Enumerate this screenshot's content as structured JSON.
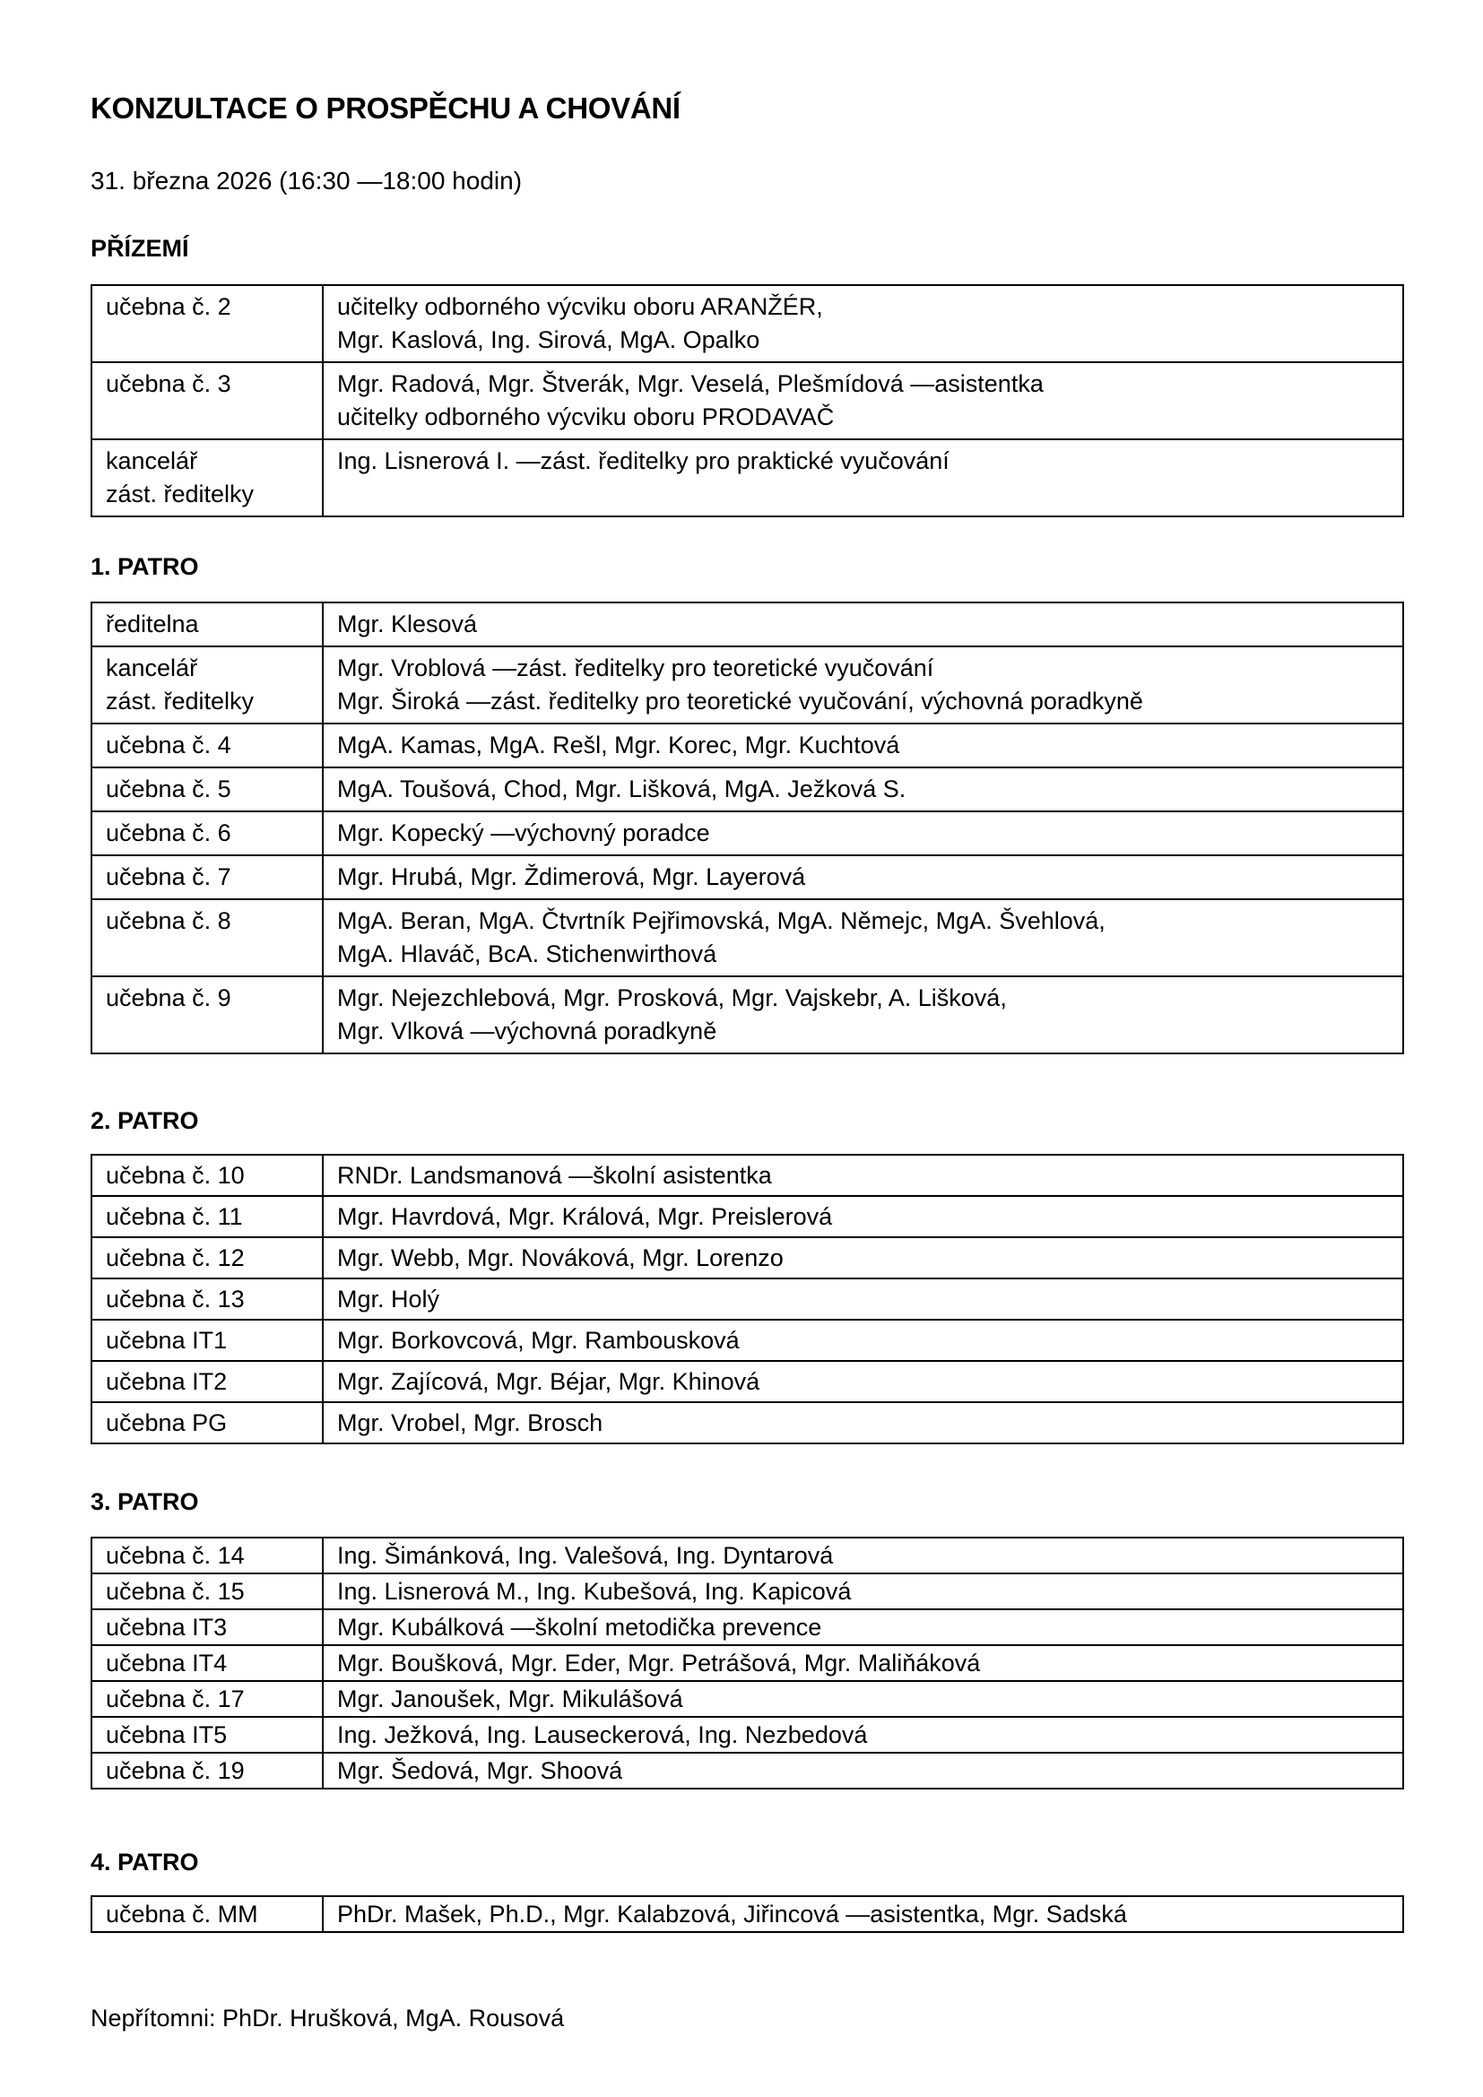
{
  "title": "KONZULTACE O PROSPĚCHU A CHOVÁNÍ",
  "date": "31. března 2026 (16:30 —18:00 hodin)",
  "sections": [
    {
      "floor": "PŘÍZEMÍ",
      "rows": [
        {
          "room": [
            "učebna č. 2"
          ],
          "people": [
            "učitelky odborného výcviku oboru ARANŽÉR,",
            "Mgr. Kaslová, Ing. Sirová, MgA. Opalko"
          ]
        },
        {
          "room": [
            "učebna č. 3"
          ],
          "people": [
            "Mgr. Radová, Mgr. Štverák, Mgr. Veselá, Plešmídová —asistentka",
            "učitelky odborného výcviku oboru PRODAVAČ"
          ]
        },
        {
          "room": [
            "kancelář",
            "zást. ředitelky"
          ],
          "people": [
            "Ing. Lisnerová I. —zást. ředitelky pro praktické vyučování"
          ]
        }
      ]
    },
    {
      "floor": "1. PATRO",
      "rows": [
        {
          "room": [
            "ředitelna"
          ],
          "people": [
            "Mgr. Klesová"
          ]
        },
        {
          "room": [
            "kancelář",
            "zást. ředitelky"
          ],
          "people": [
            "Mgr. Vroblová —zást. ředitelky pro teoretické vyučování",
            "Mgr. Široká —zást. ředitelky pro teoretické vyučování, výchovná poradkyně"
          ]
        },
        {
          "room": [
            "učebna č. 4"
          ],
          "people": [
            "MgA. Kamas, MgA. Rešl, Mgr. Korec, Mgr. Kuchtová"
          ]
        },
        {
          "room": [
            "učebna č. 5"
          ],
          "people": [
            "MgA. Toušová, Chod, Mgr. Lišková, MgA. Ježková S."
          ]
        },
        {
          "room": [
            "učebna č. 6"
          ],
          "people": [
            "Mgr. Kopecký —výchovný poradce"
          ]
        },
        {
          "room": [
            "učebna č. 7"
          ],
          "people": [
            "Mgr. Hrubá, Mgr. Ždimerová, Mgr. Layerová"
          ]
        },
        {
          "room": [
            "učebna č. 8"
          ],
          "people": [
            "MgA. Beran, MgA. Čtvrtník Pejřimovská, MgA. Němejc, MgA. Švehlová,",
            "MgA. Hlaváč, BcA. Stichenwirthová"
          ]
        },
        {
          "room": [
            "učebna č. 9"
          ],
          "people": [
            "Mgr. Nejezchlebová, Mgr. Prosková, Mgr. Vajskebr, A. Lišková,",
            "Mgr. Vlková —výchovná poradkyně"
          ]
        }
      ]
    },
    {
      "floor": "2. PATRO",
      "rows": [
        {
          "room": [
            "učebna č. 10"
          ],
          "people": [
            "RNDr. Landsmanová —školní asistentka"
          ]
        },
        {
          "room": [
            "učebna č. 11"
          ],
          "people": [
            "Mgr. Havrdová, Mgr. Králová, Mgr. Preislerová"
          ]
        },
        {
          "room": [
            "učebna č. 12"
          ],
          "people": [
            "Mgr. Webb, Mgr. Nováková, Mgr. Lorenzo"
          ]
        },
        {
          "room": [
            "učebna č. 13"
          ],
          "people": [
            "Mgr. Holý"
          ]
        },
        {
          "room": [
            "učebna IT1"
          ],
          "people": [
            "Mgr. Borkovcová, Mgr. Rambousková"
          ]
        },
        {
          "room": [
            "učebna IT2"
          ],
          "people": [
            "Mgr. Zajícová, Mgr. Béjar, Mgr. Khinová"
          ]
        },
        {
          "room": [
            "učebna PG"
          ],
          "people": [
            "Mgr. Vrobel, Mgr. Brosch"
          ]
        }
      ]
    },
    {
      "floor": "3. PATRO",
      "rows": [
        {
          "room": [
            "učebna č. 14"
          ],
          "people": [
            "Ing. Šimánková, Ing. Valešová, Ing. Dyntarová"
          ]
        },
        {
          "room": [
            "učebna č. 15"
          ],
          "people": [
            "Ing. Lisnerová M., Ing. Kubešová, Ing. Kapicová"
          ]
        },
        {
          "room": [
            "učebna IT3"
          ],
          "people": [
            "Mgr. Kubálková —školní metodička prevence"
          ]
        },
        {
          "room": [
            "učebna IT4"
          ],
          "people": [
            "Mgr. Boušková, Mgr. Eder, Mgr. Petrášová, Mgr. Maliňáková"
          ]
        },
        {
          "room": [
            "učebna č. 17"
          ],
          "people": [
            "Mgr. Janoušek, Mgr. Mikulášová"
          ]
        },
        {
          "room": [
            "učebna IT5"
          ],
          "people": [
            "Ing. Ježková, Ing. Lauseckerová, Ing. Nezbedová"
          ]
        },
        {
          "room": [
            "učebna č. 19"
          ],
          "people": [
            "Mgr. Šedová, Mgr. Shoová"
          ]
        }
      ]
    },
    {
      "floor": "4. PATRO",
      "rows": [
        {
          "room": [
            "učebna č. MM"
          ],
          "people": [
            "PhDr. Mašek, Ph.D., Mgr. Kalabzová, Jiřincová —asistentka, Mgr. Sadská"
          ]
        }
      ]
    }
  ],
  "footer": "Nepřítomni: PhDr. Hrušková, MgA. Rousová"
}
